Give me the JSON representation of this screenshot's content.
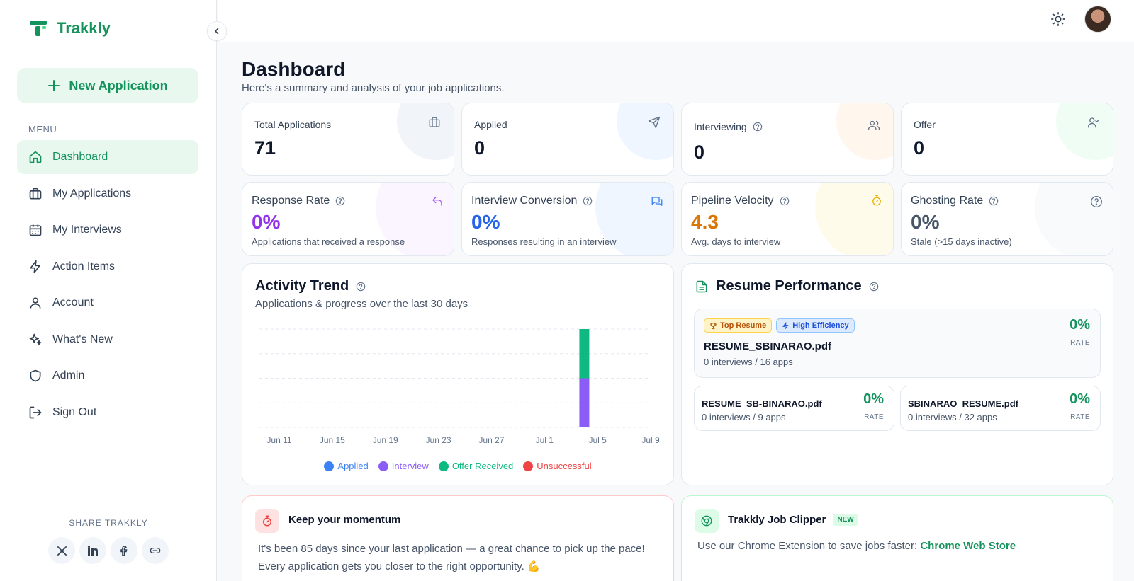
{
  "app": {
    "name": "Trakkly"
  },
  "sidebar": {
    "new_button": "New Application",
    "menu_label": "MENU",
    "items": [
      {
        "label": "Dashboard",
        "icon": "home-icon",
        "active": true
      },
      {
        "label": "My Applications",
        "icon": "briefcase-icon"
      },
      {
        "label": "My Interviews",
        "icon": "calendar-icon"
      },
      {
        "label": "Action Items",
        "icon": "lightning-icon"
      },
      {
        "label": "Account",
        "icon": "user-icon"
      },
      {
        "label": "What's New",
        "icon": "sparkles-icon"
      },
      {
        "label": "Admin",
        "icon": "shield-icon"
      },
      {
        "label": "Sign Out",
        "icon": "sign-out-icon"
      }
    ],
    "share_label": "SHARE TRAKKLY",
    "share": [
      "x-icon",
      "linkedin-icon",
      "facebook-icon",
      "link-icon"
    ]
  },
  "page": {
    "title": "Dashboard",
    "subtitle": "Here's a summary and analysis of your job applications."
  },
  "stats": {
    "total": {
      "label": "Total Applications",
      "value": "71"
    },
    "applied": {
      "label": "Applied",
      "value": "0"
    },
    "interviewing": {
      "label": "Interviewing",
      "value": "0"
    },
    "offer": {
      "label": "Offer",
      "value": "0"
    }
  },
  "metrics": {
    "response": {
      "label": "Response Rate",
      "value": "0%",
      "sub": "Applications that received a response",
      "color": "#9333ea"
    },
    "conversion": {
      "label": "Interview Conversion",
      "value": "0%",
      "sub": "Responses resulting in an interview",
      "color": "#2563eb"
    },
    "velocity": {
      "label": "Pipeline Velocity",
      "value": "4.3",
      "sub": "Avg. days to interview",
      "color": "#d97706"
    },
    "ghosting": {
      "label": "Ghosting Rate",
      "value": "0%",
      "sub": "Stale (>15 days inactive)",
      "color": "#475569"
    }
  },
  "activity": {
    "title": "Activity Trend",
    "subtitle": "Applications & progress over the last 30 days"
  },
  "chart_data": {
    "type": "bar",
    "stacked": true,
    "x_ticks": [
      "Jun 11",
      "Jun 15",
      "Jun 19",
      "Jun 23",
      "Jun 27",
      "Jul 1",
      "Jul 5",
      "Jul 9"
    ],
    "series": [
      {
        "name": "Applied",
        "color": "#3b82f6",
        "points": []
      },
      {
        "name": "Interview",
        "color": "#8b5cf6",
        "points": [
          {
            "x": "Jul 4",
            "y": 2
          }
        ]
      },
      {
        "name": "Offer Received",
        "color": "#10b981",
        "points": [
          {
            "x": "Jul 4",
            "y": 2
          }
        ]
      },
      {
        "name": "Unsuccessful",
        "color": "#ef4444",
        "points": []
      }
    ],
    "grid": true,
    "legend": "bottom"
  },
  "resume": {
    "title": "Resume Performance",
    "top": {
      "badge1": "Top Resume",
      "badge2": "High Efficiency",
      "name": "RESUME_SBINARAO.pdf",
      "meta": "0 interviews / 16 apps",
      "rate": "0%",
      "rate_label": "RATE"
    },
    "others": [
      {
        "name": "RESUME_SB-BINARAO.pdf",
        "meta": "0 interviews / 9 apps",
        "rate": "0%",
        "rate_label": "RATE"
      },
      {
        "name": "SBINARAO_RESUME.pdf",
        "meta": "0 interviews / 32 apps",
        "rate": "0%",
        "rate_label": "RATE"
      }
    ]
  },
  "momentum": {
    "title": "Keep your momentum",
    "text": "It's been 85 days since your last application — a great chance to pick up the pace! Every application gets you closer to the right opportunity. 💪"
  },
  "clipper": {
    "title": "Trakkly Job Clipper",
    "tag": "NEW",
    "text": "Use our Chrome Extension to save jobs faster:",
    "link": "Chrome Web Store"
  }
}
